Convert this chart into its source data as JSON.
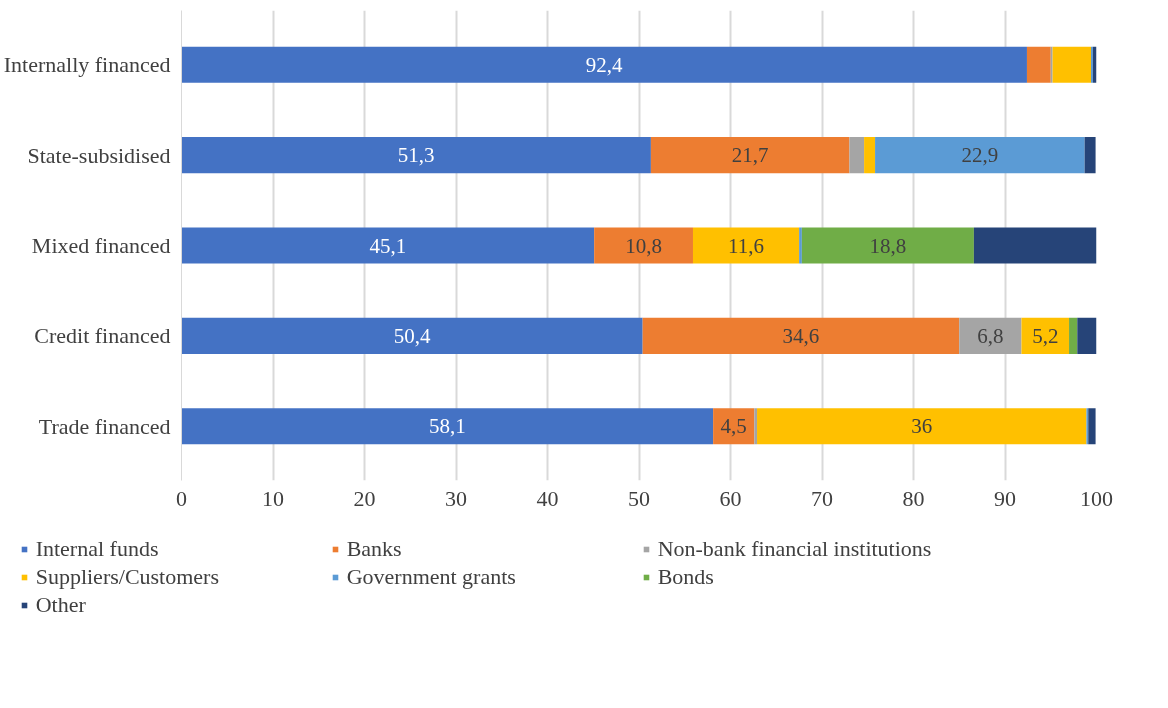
{
  "chart_data": {
    "type": "bar",
    "orientation": "horizontal",
    "stacked": true,
    "categories": [
      "Internally financed",
      "State-subsidised",
      "Mixed financed",
      "Credit financed",
      "Trade financed"
    ],
    "series": [
      {
        "name": "Internal funds",
        "color": "#4472c4",
        "values": [
          92.4,
          51.3,
          45.1,
          50.4,
          58.1
        ],
        "value_labels": [
          "92,4",
          "51,3",
          "45,1",
          "50,4",
          "58,1"
        ]
      },
      {
        "name": "Banks",
        "color": "#ed7d31",
        "values": [
          2.6,
          21.7,
          10.8,
          34.6,
          4.5
        ],
        "value_labels": [
          null,
          "21,7",
          "10,8",
          "34,6",
          "4,5"
        ]
      },
      {
        "name": "Non-bank financial institutions",
        "color": "#a5a5a5",
        "values": [
          0.2,
          1.6,
          0,
          6.8,
          0.3
        ],
        "value_labels": [
          null,
          null,
          null,
          "6,8",
          null
        ]
      },
      {
        "name": "Suppliers/Customers",
        "color": "#ffc000",
        "values": [
          4.2,
          1.2,
          11.6,
          5.2,
          36
        ],
        "value_labels": [
          null,
          null,
          "11,6",
          "5,2",
          "36"
        ]
      },
      {
        "name": "Government grants",
        "color": "#5b9bd5",
        "values": [
          0.2,
          22.9,
          0.3,
          0,
          0.2
        ],
        "value_labels": [
          null,
          "22,9",
          null,
          null,
          null
        ]
      },
      {
        "name": "Bonds",
        "color": "#70ad47",
        "values": [
          0,
          0,
          18.8,
          0.9,
          0
        ],
        "value_labels": [
          null,
          null,
          "18,8",
          null,
          null
        ]
      },
      {
        "name": "Other",
        "color": "#264478",
        "values": [
          0.4,
          1.2,
          13.4,
          2.1,
          0.8
        ],
        "value_labels": [
          null,
          null,
          null,
          null,
          null
        ]
      }
    ],
    "xlim": [
      0,
      100
    ],
    "xticks": [
      0,
      10,
      20,
      30,
      40,
      50,
      60,
      70,
      80,
      90,
      100
    ],
    "grid": "x",
    "legend": "bottom"
  }
}
